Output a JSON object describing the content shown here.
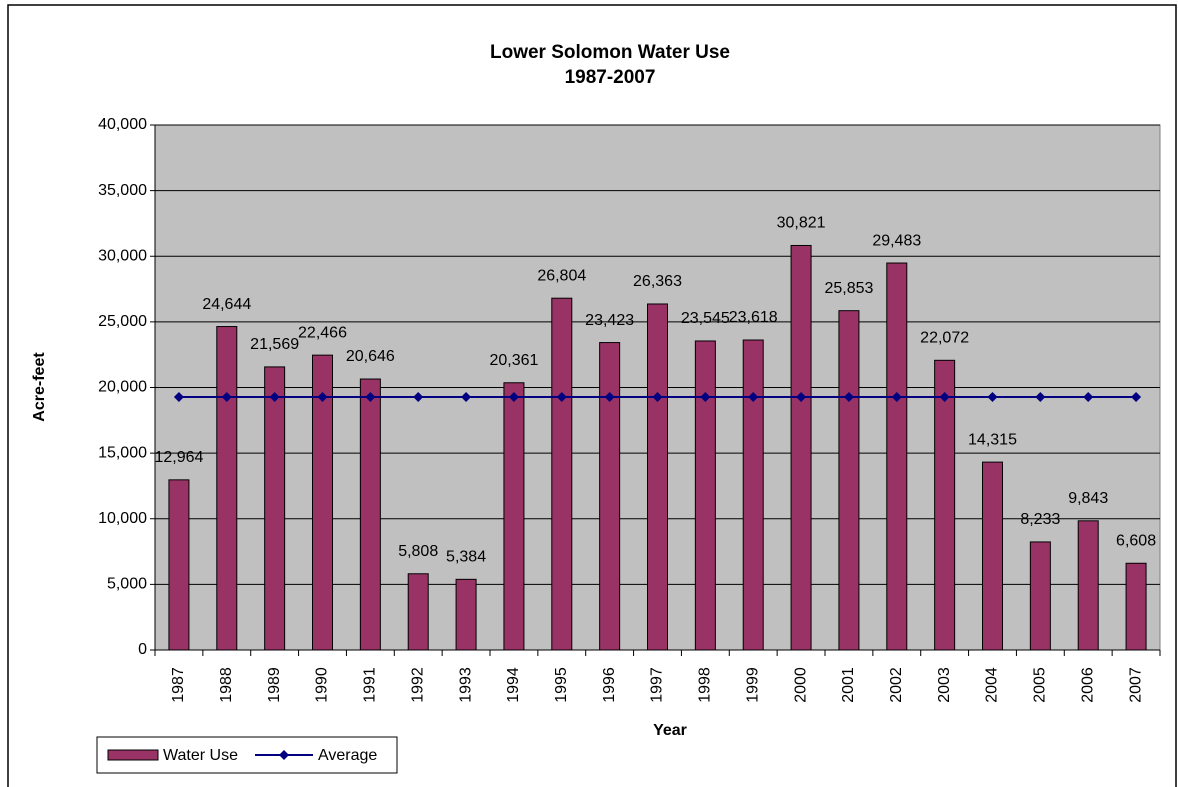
{
  "chart_data": {
    "type": "bar",
    "title": "Lower Solomon Water Use",
    "subtitle": "1987-2007",
    "x_label": "Year",
    "y_label": "Acre-feet",
    "categories": [
      "1987",
      "1988",
      "1989",
      "1990",
      "1991",
      "1992",
      "1993",
      "1994",
      "1995",
      "1996",
      "1997",
      "1998",
      "1999",
      "2000",
      "2001",
      "2002",
      "2003",
      "2004",
      "2005",
      "2006",
      "2007"
    ],
    "series": [
      {
        "name": "Water Use",
        "color": "#993366",
        "type": "bar",
        "values": [
          12964,
          24644,
          21569,
          22466,
          20646,
          5808,
          5384,
          20361,
          26804,
          23423,
          26363,
          23545,
          23618,
          30821,
          25853,
          29483,
          22072,
          14315,
          8233,
          9843,
          6608
        ],
        "value_labels": [
          "12,964",
          "24,644",
          "21,569",
          "22,466",
          "20,646",
          "5,808",
          "5,384",
          "20,361",
          "26,804",
          "23,423",
          "26,363",
          "23,545",
          "23,618",
          "30,821",
          "25,853",
          "29,483",
          "22,072",
          "14,315",
          "8,233",
          "9,843",
          "6,608"
        ]
      },
      {
        "name": "Average",
        "color": "#000080",
        "type": "line",
        "values": [
          19277,
          19277,
          19277,
          19277,
          19277,
          19277,
          19277,
          19277,
          19277,
          19277,
          19277,
          19277,
          19277,
          19277,
          19277,
          19277,
          19277,
          19277,
          19277,
          19277,
          19277
        ]
      }
    ],
    "ylim": [
      0,
      40000
    ],
    "yticks": [
      0,
      {
        "value": 5000,
        "label": "5,000"
      },
      {
        "value": 10000,
        "label": "10,000"
      },
      {
        "value": 15000,
        "label": "15,000"
      },
      {
        "value": 20000,
        "label": "20,000"
      },
      {
        "value": 25000,
        "label": "25,000"
      },
      {
        "value": 30000,
        "label": "30,000"
      },
      {
        "value": 35000,
        "label": "35,000"
      },
      {
        "value": 40000,
        "label": "40,000"
      }
    ],
    "grid": true,
    "legend": "bottom-left",
    "plot_background": "#c0c0c0"
  }
}
